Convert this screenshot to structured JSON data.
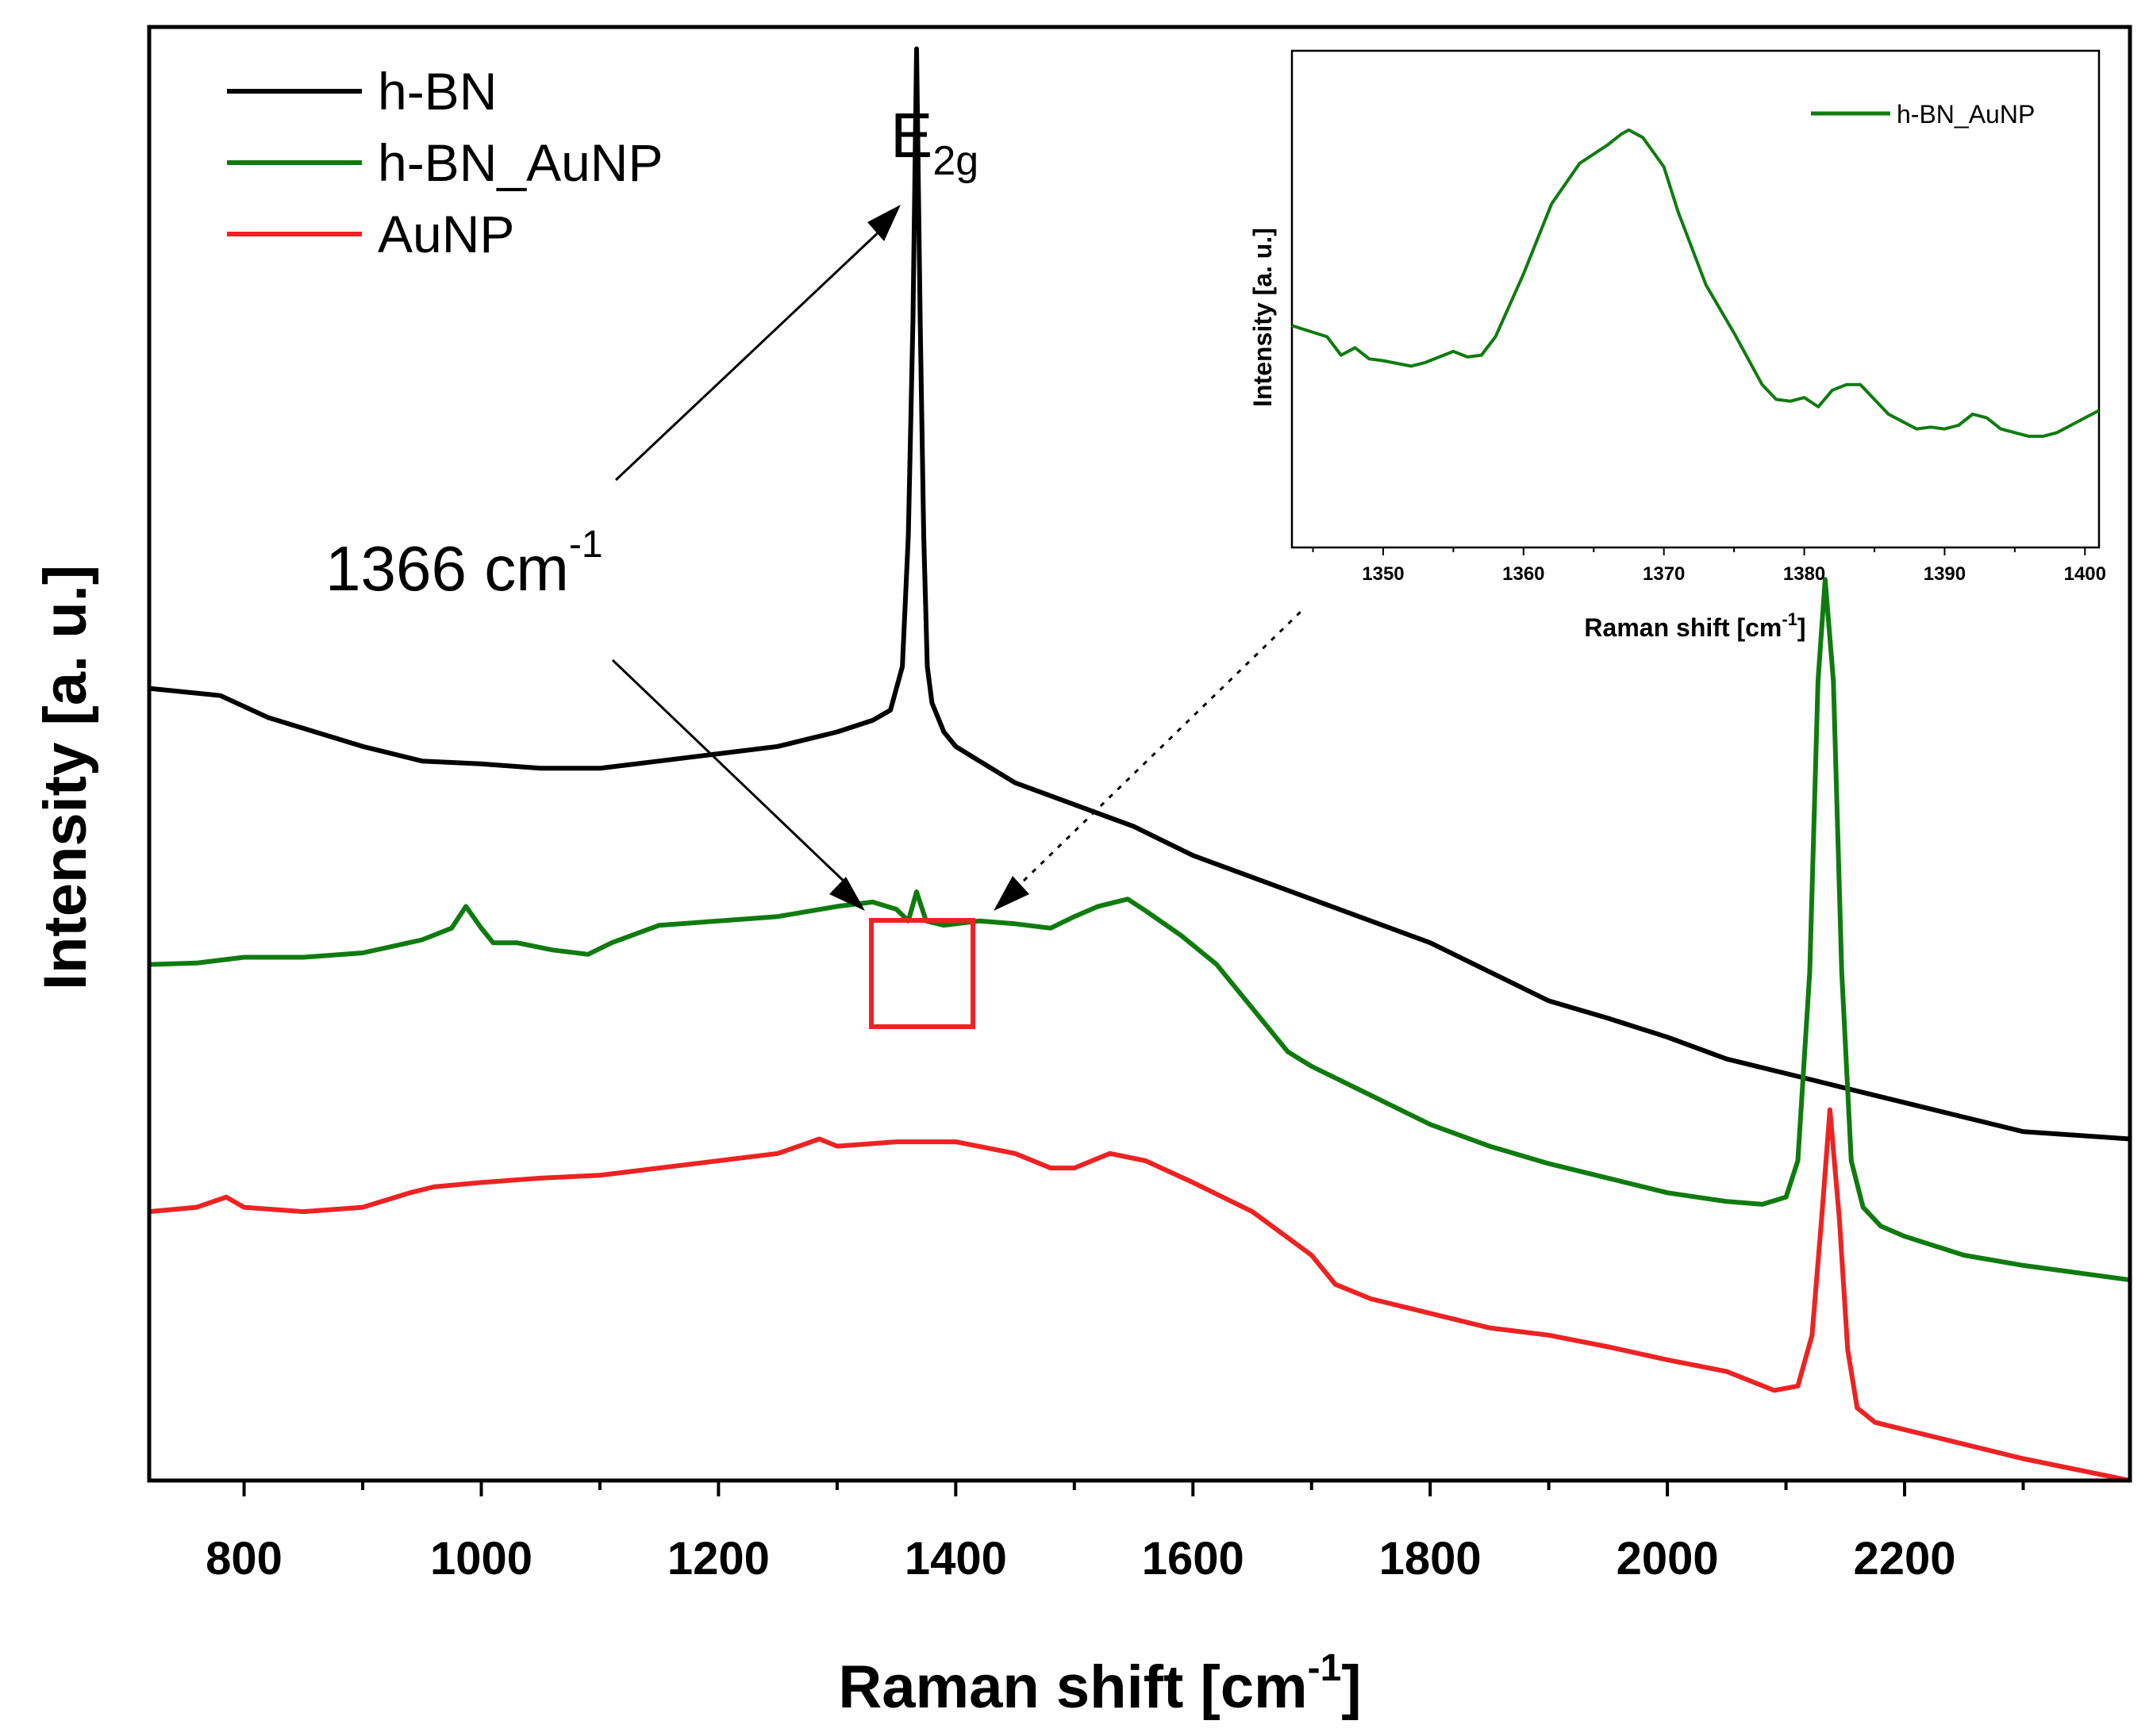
{
  "chart_data": {
    "type": "line",
    "title": "",
    "xlabel": "Raman shift [cm",
    "xlabel_sup": "-1",
    "xlabel_end": "]",
    "ylabel": "Intensity [a. u.]",
    "xlim": [
      720,
      2390
    ],
    "ylim": [
      0,
      100
    ],
    "x_ticks": [
      800,
      1000,
      1200,
      1400,
      1600,
      1800,
      2000,
      2200
    ],
    "x_tick_labels": [
      "800",
      "1000",
      "1200",
      "1400",
      "1600",
      "1800",
      "2000",
      "2200"
    ],
    "y_ticks_shown": false,
    "legend_position": "top-left",
    "series": [
      {
        "name": "h-BN",
        "color": "#000000",
        "x": [
          720,
          780,
          820,
          860,
          900,
          950,
          1000,
          1050,
          1100,
          1150,
          1200,
          1250,
          1300,
          1330,
          1345,
          1355,
          1360,
          1364,
          1367,
          1370,
          1373,
          1376,
          1380,
          1390,
          1400,
          1420,
          1450,
          1500,
          1550,
          1600,
          1650,
          1700,
          1750,
          1800,
          1850,
          1900,
          1950,
          2000,
          2050,
          2100,
          2150,
          2200,
          2250,
          2300,
          2390
        ],
        "values": [
          54.5,
          54,
          52.5,
          51.5,
          50.5,
          49.5,
          49.3,
          49,
          49,
          49.5,
          50,
          50.5,
          51.5,
          52.3,
          53,
          56,
          65,
          80,
          98.5,
          80,
          65,
          56,
          53.5,
          51.5,
          50.5,
          49.5,
          48,
          46.5,
          45,
          43,
          41.5,
          40,
          38.5,
          37,
          35,
          33,
          31.8,
          30.5,
          29,
          28,
          27,
          26,
          25,
          24,
          23.5
        ]
      },
      {
        "name": "h-BN_AuNP",
        "color": "#0f7b0f",
        "x": [
          720,
          760,
          800,
          850,
          900,
          950,
          975,
          987,
          1000,
          1010,
          1030,
          1060,
          1090,
          1110,
          1150,
          1200,
          1250,
          1300,
          1330,
          1350,
          1360,
          1367,
          1375,
          1390,
          1420,
          1450,
          1480,
          1500,
          1520,
          1545,
          1560,
          1590,
          1620,
          1650,
          1680,
          1700,
          1750,
          1800,
          1850,
          1900,
          1950,
          2000,
          2050,
          2080,
          2100,
          2110,
          2120,
          2127,
          2133,
          2140,
          2147,
          2155,
          2165,
          2180,
          2200,
          2250,
          2300,
          2390
        ],
        "values": [
          35.5,
          35.6,
          36,
          36,
          36.3,
          37.2,
          38,
          39.5,
          38,
          37,
          37,
          36.5,
          36.2,
          37,
          38.2,
          38.5,
          38.8,
          39.5,
          39.8,
          39.3,
          38.5,
          40.5,
          38.5,
          38.2,
          38.5,
          38.3,
          38,
          38.8,
          39.5,
          40,
          39.2,
          37.5,
          35.5,
          32.5,
          29.5,
          28.5,
          26.5,
          24.5,
          23,
          21.8,
          20.8,
          19.8,
          19.2,
          19,
          19.5,
          22,
          35,
          55,
          62,
          55,
          35,
          22,
          18.8,
          17.5,
          16.8,
          15.5,
          14.8,
          13.8
        ]
      },
      {
        "name": "AuNP",
        "color": "#ee2222",
        "x": [
          720,
          760,
          785,
          800,
          850,
          900,
          940,
          960,
          1000,
          1050,
          1100,
          1150,
          1200,
          1250,
          1285,
          1300,
          1350,
          1400,
          1450,
          1480,
          1500,
          1530,
          1560,
          1600,
          1650,
          1700,
          1720,
          1750,
          1800,
          1850,
          1900,
          1950,
          2000,
          2050,
          2090,
          2110,
          2122,
          2130,
          2137,
          2145,
          2152,
          2160,
          2175,
          2200,
          2250,
          2300,
          2390
        ],
        "values": [
          18.5,
          18.8,
          19.5,
          18.8,
          18.5,
          18.8,
          19.8,
          20.2,
          20.5,
          20.8,
          21,
          21.5,
          22,
          22.5,
          23.5,
          23,
          23.3,
          23.3,
          22.5,
          21.5,
          21.5,
          22.5,
          22,
          20.5,
          18.5,
          15.5,
          13.5,
          12.5,
          11.5,
          10.5,
          10,
          9.2,
          8.3,
          7.5,
          6.2,
          6.5,
          10,
          18,
          25.5,
          18,
          9,
          5,
          4,
          3.5,
          2.5,
          1.5,
          0
        ]
      }
    ],
    "annotations": {
      "e2g_base": "E",
      "e2g_sub": "2g",
      "peak_base": "1366 cm",
      "peak_sup": "-1"
    },
    "inset": {
      "type": "line",
      "xlabel": "Raman shift [cm",
      "xlabel_sup": "-1",
      "xlabel_end": "]",
      "ylabel": "Intensity [a. u.]",
      "xlim": [
        1343.5,
        1401
      ],
      "ylim": [
        0,
        100
      ],
      "x_ticks": [
        1350,
        1360,
        1370,
        1380,
        1390,
        1400
      ],
      "x_tick_labels": [
        "1350",
        "1360",
        "1370",
        "1380",
        "1390",
        "1400"
      ],
      "legend_position": "top-right",
      "series": [
        {
          "name": "h-BN_AuNP",
          "color": "#0f7b0f",
          "x": [
            1343.5,
            1346,
            1347,
            1348,
            1349,
            1350,
            1352,
            1353,
            1355,
            1356,
            1357,
            1358,
            1360,
            1362,
            1364,
            1366,
            1367,
            1367.5,
            1368.5,
            1370,
            1371,
            1373,
            1375,
            1377,
            1378,
            1379,
            1380,
            1381,
            1382,
            1383,
            1384,
            1385,
            1386,
            1387,
            1388,
            1389,
            1390,
            1391,
            1392,
            1393,
            1394,
            1395,
            1396,
            1397,
            1398,
            1399,
            1400,
            1401
          ],
          "values": [
            44,
            41,
            36,
            38,
            35,
            34.5,
            33,
            34,
            37,
            35.5,
            36,
            41,
            58,
            77,
            88,
            93,
            96,
            97,
            95,
            87,
            75,
            55,
            42,
            28,
            24,
            23.5,
            24.5,
            22,
            26.5,
            28,
            28,
            24,
            20,
            18,
            16,
            16.5,
            16,
            17,
            20,
            19,
            16,
            15,
            14,
            14,
            15,
            17,
            19,
            21
          ]
        }
      ]
    }
  }
}
